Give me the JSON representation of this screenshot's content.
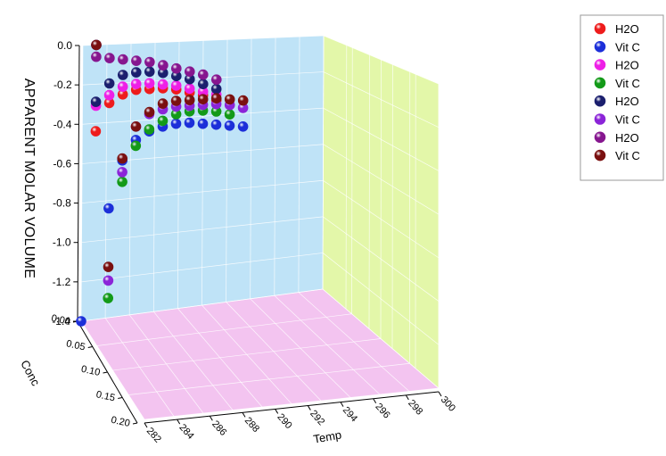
{
  "chart_data": {
    "type": "scatter",
    "projection": "3d",
    "xlabel": "Temp",
    "ylabel": "Conc",
    "zlabel": "APPARENT MOLAR VOLUME",
    "xlim": [
      282,
      300
    ],
    "ylim": [
      0,
      0.2
    ],
    "zlim": [
      -1.4,
      0.0
    ],
    "xticks": [
      "282",
      "284",
      "286",
      "288",
      "290",
      "292",
      "294",
      "296",
      "298",
      "300"
    ],
    "yticks": [
      "0.00",
      "0.05",
      "0.10",
      "0.15",
      "0.20"
    ],
    "zticks": [
      "0.0",
      "-0.2",
      "-0.4",
      "-0.6",
      "-0.8",
      "-1.0",
      "-1.2",
      "-1.4"
    ],
    "grid": true,
    "legend_position": "top-right",
    "wall_colors": {
      "back": "#bfe3f7",
      "side": "#e3f7a9",
      "floor": "#f3c4f0"
    },
    "series": [
      {
        "name": "H2O",
        "color": "#ee1c1c",
        "x": [
          283.0,
          284.0,
          285.0,
          286.0,
          287.0,
          288.0,
          289.0,
          290.0,
          291.0,
          292.0
        ],
        "y": [
          0.0,
          0.0,
          0.0,
          0.0,
          0.0,
          0.0,
          0.0,
          0.0,
          0.0,
          0.0
        ],
        "z": [
          -0.44,
          -0.3,
          -0.26,
          -0.24,
          -0.24,
          -0.24,
          -0.25,
          -0.27,
          -0.29,
          -0.32
        ]
      },
      {
        "name": "Vit C",
        "color": "#1c2fd9",
        "x": [
          282.0,
          283.0,
          284.0,
          285.0,
          286.0,
          287.0,
          288.0,
          289.0,
          290.0,
          291.0,
          292.0,
          293.0,
          294.0
        ],
        "y": [
          0.0,
          0.0,
          0.0,
          0.0,
          0.0,
          0.0,
          0.0,
          0.0,
          0.0,
          0.0,
          0.0,
          0.0,
          0.0
        ],
        "z": [
          -1.4,
          0.0,
          -0.84,
          -0.6,
          -0.5,
          -0.46,
          -0.44,
          -0.43,
          -0.43,
          -0.44,
          -0.45,
          -0.46,
          -0.47
        ]
      },
      {
        "name": "H2O",
        "color": "#ee1fe6",
        "x": [
          283.0,
          284.0,
          285.0,
          286.0,
          287.0,
          288.0,
          289.0,
          290.0,
          291.0,
          292.0
        ],
        "y": [
          0.0,
          0.0,
          0.0,
          0.0,
          0.0,
          0.0,
          0.0,
          0.0,
          0.0,
          0.0
        ],
        "z": [
          -0.31,
          -0.26,
          -0.22,
          -0.21,
          -0.21,
          -0.22,
          -0.23,
          -0.25,
          -0.27,
          -0.29
        ]
      },
      {
        "name": "Vit C",
        "color": "#139a18",
        "x": [
          283.0,
          284.0,
          285.0,
          286.0,
          287.0,
          288.0,
          289.0,
          290.0,
          291.0,
          292.0,
          293.0
        ],
        "y": [
          0.0,
          0.0,
          0.0,
          0.0,
          0.0,
          0.0,
          0.0,
          0.0,
          0.0,
          0.0,
          0.0
        ],
        "z": [
          0.0,
          -1.3,
          -0.71,
          -0.53,
          -0.45,
          -0.41,
          -0.38,
          -0.37,
          -0.37,
          -0.38,
          -0.4
        ]
      },
      {
        "name": "H2O",
        "color": "#1b1f6e",
        "x": [
          283.0,
          284.0,
          285.0,
          286.0,
          287.0,
          288.0,
          289.0,
          290.0,
          291.0,
          292.0
        ],
        "y": [
          0.0,
          0.0,
          0.0,
          0.0,
          0.0,
          0.0,
          0.0,
          0.0,
          0.0,
          0.0
        ],
        "z": [
          -0.29,
          -0.2,
          -0.16,
          -0.15,
          -0.15,
          -0.16,
          -0.18,
          -0.2,
          -0.23,
          -0.26
        ]
      },
      {
        "name": "Vit C",
        "color": "#8b24d8",
        "x": [
          283.0,
          284.0,
          285.0,
          286.0,
          287.0,
          288.0,
          289.0,
          290.0,
          291.0,
          292.0,
          293.0,
          294.0
        ],
        "y": [
          0.0,
          0.0,
          0.0,
          0.0,
          0.0,
          0.0,
          0.0,
          0.0,
          0.0,
          0.0,
          0.0,
          0.0
        ],
        "z": [
          0.0,
          -1.21,
          -0.66,
          -0.43,
          -0.37,
          -0.35,
          -0.34,
          -0.34,
          -0.34,
          -0.34,
          -0.35,
          -0.37
        ]
      },
      {
        "name": "H2O",
        "color": "#86168f",
        "x": [
          283.0,
          284.0,
          285.0,
          286.0,
          287.0,
          288.0,
          289.0,
          290.0,
          291.0,
          292.0
        ],
        "y": [
          0.0,
          0.0,
          0.0,
          0.0,
          0.0,
          0.0,
          0.0,
          0.0,
          0.0,
          0.0
        ],
        "z": [
          -0.06,
          -0.07,
          -0.08,
          -0.09,
          -0.1,
          -0.12,
          -0.14,
          -0.16,
          -0.18,
          -0.21
        ]
      },
      {
        "name": "Vit C",
        "color": "#7a1010",
        "x": [
          283.0,
          284.0,
          285.0,
          286.0,
          287.0,
          288.0,
          289.0,
          290.0,
          291.0,
          292.0,
          293.0,
          294.0
        ],
        "y": [
          0.0,
          0.0,
          0.0,
          0.0,
          0.0,
          0.0,
          0.0,
          0.0,
          0.0,
          0.0,
          0.0,
          0.0
        ],
        "z": [
          0.0,
          -1.14,
          -0.59,
          -0.43,
          -0.36,
          -0.32,
          -0.31,
          -0.31,
          -0.31,
          -0.31,
          -0.32,
          -0.33
        ]
      }
    ]
  }
}
